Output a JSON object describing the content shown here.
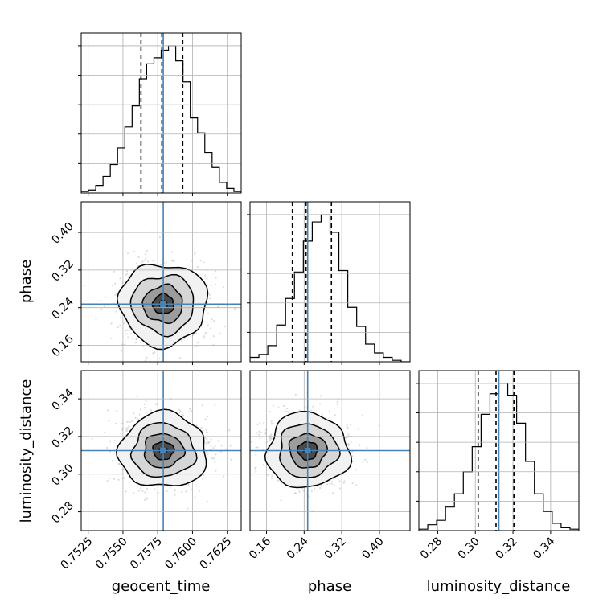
{
  "chart_data": {
    "type": "corner",
    "parameters": [
      "geocent_time",
      "phase",
      "luminosity_distance"
    ],
    "axis_labels": {
      "geocent_time": "geocent_time",
      "phase": "phase",
      "luminosity_distance": "luminosity_distance"
    },
    "ranges": {
      "geocent_time": [
        0.752,
        0.7635
      ],
      "phase": [
        0.125,
        0.465
      ],
      "luminosity_distance": [
        0.27,
        0.355
      ]
    },
    "ticks": {
      "geocent_time": [
        {
          "value": 0.7525,
          "label": "0.7525"
        },
        {
          "value": 0.755,
          "label": "0.7550"
        },
        {
          "value": 0.7575,
          "label": "0.7575"
        },
        {
          "value": 0.76,
          "label": "0.7600"
        },
        {
          "value": 0.7625,
          "label": "0.7625"
        }
      ],
      "phase": [
        {
          "value": 0.16,
          "label": "0.16"
        },
        {
          "value": 0.24,
          "label": "0.24"
        },
        {
          "value": 0.32,
          "label": "0.32"
        },
        {
          "value": 0.4,
          "label": "0.40"
        }
      ],
      "luminosity_distance": [
        {
          "value": 0.28,
          "label": "0.28"
        },
        {
          "value": 0.3,
          "label": "0.30"
        },
        {
          "value": 0.32,
          "label": "0.32"
        },
        {
          "value": 0.34,
          "label": "0.34"
        }
      ]
    },
    "truths": {
      "geocent_time": 0.7579,
      "phase": 0.2475,
      "luminosity_distance": 0.3125
    },
    "quantiles": {
      "geocent_time": [
        0.7563,
        0.7578,
        0.7593
      ],
      "phase": [
        0.215,
        0.244,
        0.298
      ],
      "luminosity_distance": [
        0.3015,
        0.311,
        0.3205
      ]
    },
    "histograms": {
      "geocent_time": [
        0.01,
        0.02,
        0.05,
        0.11,
        0.19,
        0.3,
        0.44,
        0.58,
        0.76,
        0.86,
        0.9,
        0.95,
        0.98,
        0.88,
        0.74,
        0.5,
        0.4,
        0.27,
        0.17,
        0.07,
        0.03,
        0.01
      ],
      "phase": [
        0.03,
        0.05,
        0.11,
        0.25,
        0.43,
        0.61,
        0.82,
        0.95,
        1.0,
        0.88,
        0.62,
        0.37,
        0.24,
        0.12,
        0.06,
        0.03,
        0.01,
        0.0
      ],
      "luminosity_distance": [
        0.01,
        0.04,
        0.07,
        0.16,
        0.25,
        0.4,
        0.57,
        0.79,
        0.93,
        1.0,
        0.92,
        0.73,
        0.47,
        0.25,
        0.13,
        0.05,
        0.02,
        0.01
      ]
    },
    "grid": true,
    "colors": {
      "truth": "#4682b4",
      "contour": "#000000",
      "hist": "#000000",
      "grid": "#b0b0b0",
      "samples": "#9a9a9a"
    }
  }
}
